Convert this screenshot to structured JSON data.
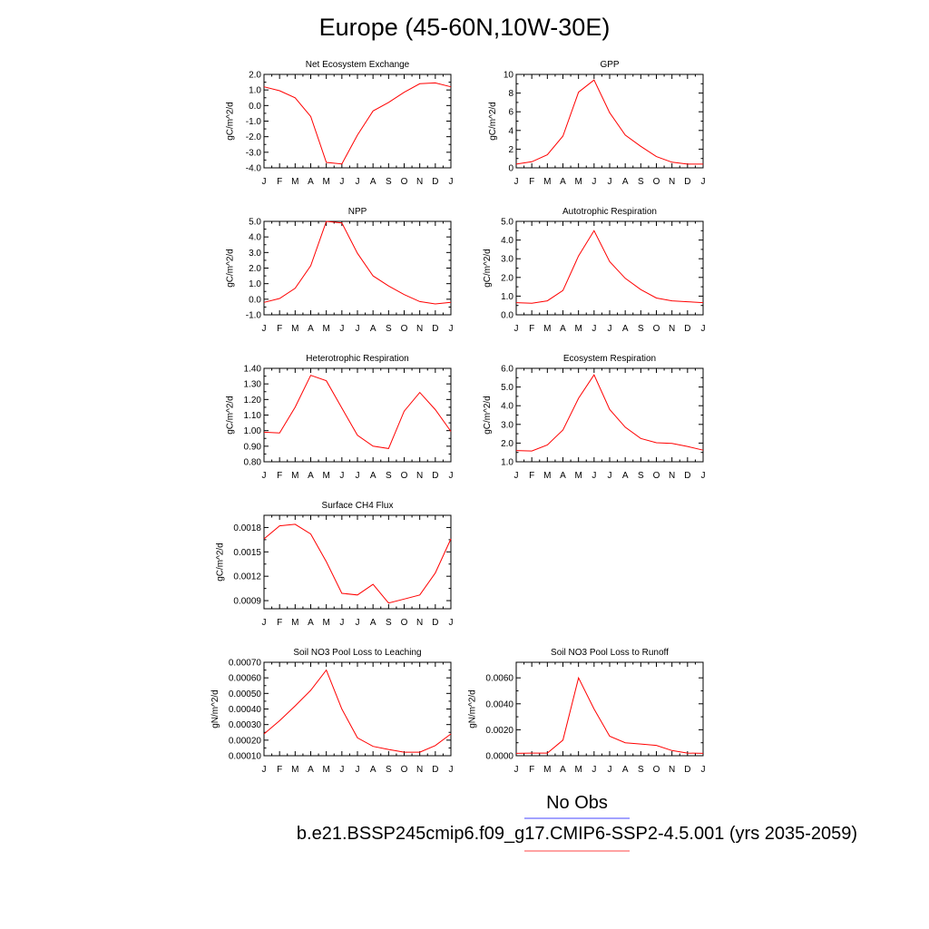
{
  "title": "Europe (45-60N,10W-30E)",
  "colors": {
    "series": "#ff0000",
    "obs_line": "#4444ff",
    "model_line": "#ff4444",
    "frame": "#000000"
  },
  "legend": {
    "obs_label": "No Obs",
    "model_label": "b.e21.BSSP245cmip6.f09_g17.CMIP6-SSP2-4.5.001 (yrs 2035-2059)"
  },
  "chart_data": [
    {
      "type": "line",
      "title": "Net Ecosystem Exchange",
      "ylabel": "gC/m^2/d",
      "x": [
        "J",
        "F",
        "M",
        "A",
        "M",
        "J",
        "J",
        "A",
        "S",
        "O",
        "N",
        "D",
        "J"
      ],
      "ylim": [
        -4.0,
        2.0
      ],
      "yticks": [
        2.0,
        1.0,
        0.0,
        -1.0,
        -2.0,
        -3.0,
        -4.0
      ],
      "ytick_labels": [
        "2.0",
        "1.0",
        "0.0",
        "-1.0",
        "-2.0",
        "-3.0",
        "-4.0"
      ],
      "values": [
        1.2,
        0.95,
        0.5,
        -0.7,
        -3.65,
        -3.75,
        -1.9,
        -0.35,
        0.2,
        0.85,
        1.4,
        1.45,
        1.2
      ]
    },
    {
      "type": "line",
      "title": "GPP",
      "ylabel": "gC/m^2/d",
      "x": [
        "J",
        "F",
        "M",
        "A",
        "M",
        "J",
        "J",
        "A",
        "S",
        "O",
        "N",
        "D",
        "J"
      ],
      "ylim": [
        0,
        10
      ],
      "yticks": [
        10,
        8,
        6,
        4,
        2,
        0
      ],
      "ytick_labels": [
        "10",
        "8",
        "6",
        "4",
        "2",
        "0"
      ],
      "values": [
        0.4,
        0.65,
        1.4,
        3.4,
        8.1,
        9.4,
        5.9,
        3.5,
        2.3,
        1.2,
        0.6,
        0.4,
        0.4
      ]
    },
    {
      "type": "line",
      "title": "NPP",
      "ylabel": "gC/m^2/d",
      "x": [
        "J",
        "F",
        "M",
        "A",
        "M",
        "J",
        "J",
        "A",
        "S",
        "O",
        "N",
        "D",
        "J"
      ],
      "ylim": [
        -1.0,
        5.0
      ],
      "yticks": [
        5.0,
        4.0,
        3.0,
        2.0,
        1.0,
        0.0,
        -1.0
      ],
      "ytick_labels": [
        "5.0",
        "4.0",
        "3.0",
        "2.0",
        "1.0",
        "0.0",
        "-1.0"
      ],
      "values": [
        -0.2,
        0.05,
        0.7,
        2.15,
        5.0,
        4.9,
        2.95,
        1.5,
        0.85,
        0.3,
        -0.15,
        -0.3,
        -0.2
      ]
    },
    {
      "type": "line",
      "title": "Autotrophic Respiration",
      "ylabel": "gC/m^2/d",
      "x": [
        "J",
        "F",
        "M",
        "A",
        "M",
        "J",
        "J",
        "A",
        "S",
        "O",
        "N",
        "D",
        "J"
      ],
      "ylim": [
        0.0,
        5.0
      ],
      "yticks": [
        5.0,
        4.0,
        3.0,
        2.0,
        1.0,
        0.0
      ],
      "ytick_labels": [
        "5.0",
        "4.0",
        "3.0",
        "2.0",
        "1.0",
        "0.0"
      ],
      "values": [
        0.65,
        0.62,
        0.75,
        1.3,
        3.15,
        4.5,
        2.85,
        1.95,
        1.35,
        0.9,
        0.75,
        0.7,
        0.65
      ]
    },
    {
      "type": "line",
      "title": "Heterotrophic Respiration",
      "ylabel": "gC/m^2/d",
      "x": [
        "J",
        "F",
        "M",
        "A",
        "M",
        "J",
        "J",
        "A",
        "S",
        "O",
        "N",
        "D",
        "J"
      ],
      "ylim": [
        0.8,
        1.4
      ],
      "yticks": [
        1.4,
        1.3,
        1.2,
        1.1,
        1.0,
        0.9,
        0.8
      ],
      "ytick_labels": [
        "1.40",
        "1.30",
        "1.20",
        "1.10",
        "1.00",
        "0.90",
        "0.80"
      ],
      "values": [
        0.99,
        0.985,
        1.15,
        1.355,
        1.32,
        1.145,
        0.97,
        0.9,
        0.885,
        1.125,
        1.245,
        1.135,
        0.995
      ]
    },
    {
      "type": "line",
      "title": "Ecosystem Respiration",
      "ylabel": "gC/m^2/d",
      "x": [
        "J",
        "F",
        "M",
        "A",
        "M",
        "J",
        "J",
        "A",
        "S",
        "O",
        "N",
        "D",
        "J"
      ],
      "ylim": [
        1.0,
        6.0
      ],
      "yticks": [
        6.0,
        5.0,
        4.0,
        3.0,
        2.0,
        1.0
      ],
      "ytick_labels": [
        "6.0",
        "5.0",
        "4.0",
        "3.0",
        "2.0",
        "1.0"
      ],
      "values": [
        1.6,
        1.58,
        1.9,
        2.7,
        4.4,
        5.65,
        3.8,
        2.85,
        2.25,
        2.02,
        1.98,
        1.82,
        1.62
      ]
    },
    {
      "type": "line",
      "title": "Surface CH4 Flux",
      "ylabel": "gC/m^2/d",
      "x": [
        "J",
        "F",
        "M",
        "A",
        "M",
        "J",
        "J",
        "A",
        "S",
        "O",
        "N",
        "D",
        "J"
      ],
      "ylim": [
        0.0008,
        0.00195
      ],
      "yticks": [
        0.0018,
        0.0015,
        0.0012,
        0.0009
      ],
      "ytick_labels": [
        "0.0018",
        "0.0015",
        "0.0012",
        "0.0009"
      ],
      "values": [
        0.00166,
        0.00182,
        0.00184,
        0.00172,
        0.00138,
        0.00099,
        0.00097,
        0.0011,
        0.00087,
        0.00092,
        0.00097,
        0.00124,
        0.00166
      ]
    },
    {
      "type": "line",
      "title": "Soil NO3 Pool Loss to Leaching",
      "ylabel": "gN/m^2/d",
      "x": [
        "J",
        "F",
        "M",
        "A",
        "M",
        "J",
        "J",
        "A",
        "S",
        "O",
        "N",
        "D",
        "J"
      ],
      "ylim": [
        0.0001,
        0.0007
      ],
      "yticks": [
        0.0007,
        0.0006,
        0.0005,
        0.0004,
        0.0003,
        0.0002,
        0.0001
      ],
      "ytick_labels": [
        "0.00070",
        "0.00060",
        "0.00050",
        "0.00040",
        "0.00030",
        "0.00020",
        "0.00010"
      ],
      "values": [
        0.00024,
        0.000325,
        0.00042,
        0.00052,
        0.00065,
        0.0004,
        0.000215,
        0.00016,
        0.00014,
        0.000123,
        0.000123,
        0.000165,
        0.00024
      ]
    },
    {
      "type": "line",
      "title": "Soil NO3 Pool Loss to Runoff",
      "ylabel": "gN/m^2/d",
      "x": [
        "J",
        "F",
        "M",
        "A",
        "M",
        "J",
        "J",
        "A",
        "S",
        "O",
        "N",
        "D",
        "J"
      ],
      "ylim": [
        0.0,
        0.0072
      ],
      "yticks": [
        0.006,
        0.004,
        0.002,
        0.0
      ],
      "ytick_labels": [
        "0.0060",
        "0.0040",
        "0.0020",
        "0.0000"
      ],
      "values": [
        0.00018,
        0.0002,
        0.0002,
        0.0012,
        0.006,
        0.0036,
        0.0015,
        0.001,
        0.0009,
        0.0008,
        0.0004,
        0.0002,
        0.00018
      ]
    }
  ]
}
